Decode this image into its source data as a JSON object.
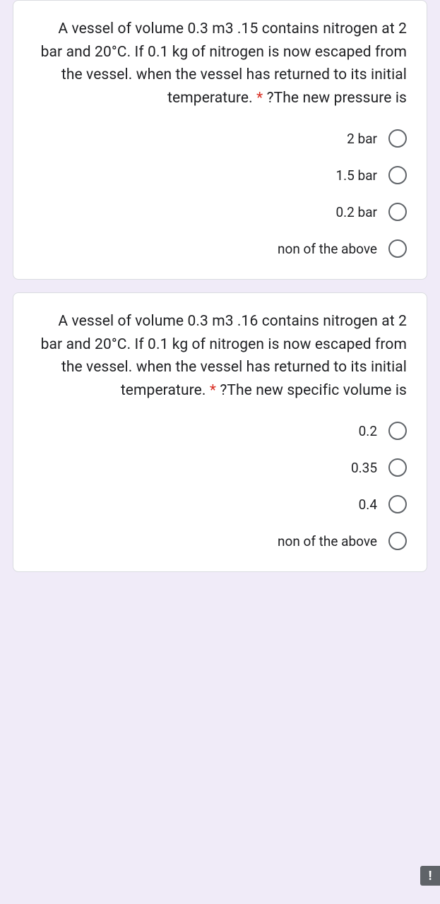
{
  "questions": [
    {
      "number_prefix": "A vessel of volume 0.3 m3 .15",
      "body_lines": "contains nitrogen at 2 bar and 20°C. If 0.1 kg of nitrogen is now escaped from the vessel. when the vessel has returned to its initial temperature.",
      "prompt": "?The new pressure is",
      "options": [
        {
          "label": "2 bar"
        },
        {
          "label": "1.5 bar"
        },
        {
          "label": "0.2 bar"
        },
        {
          "label": "non of the above"
        }
      ]
    },
    {
      "number_prefix": "A vessel of volume 0.3 m3 .16",
      "body_lines": "contains nitrogen at 2 bar and 20°C. If 0.1 kg of nitrogen is now escaped from the vessel. when the vessel has returned to its initial temperature.",
      "prompt": "?The new specific volume is",
      "options": [
        {
          "label": "0.2"
        },
        {
          "label": "0.35"
        },
        {
          "label": "0.4"
        },
        {
          "label": "non of the above"
        }
      ]
    }
  ],
  "required_marker": "*",
  "report_icon": "!"
}
